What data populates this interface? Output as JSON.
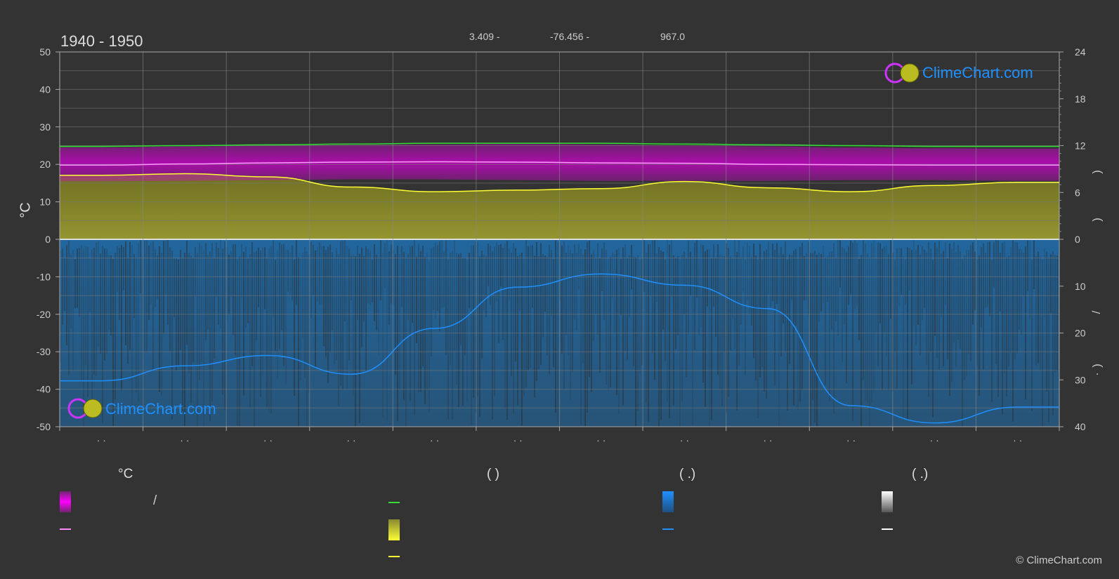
{
  "header": {
    "title": "1940 - 1950",
    "lat": "3.409 -",
    "lon": "-76.456 -",
    "elevation": "967.0"
  },
  "axes": {
    "left_unit": "°C",
    "right_axis_marks": [
      ")",
      ")",
      "/",
      ")",
      "·"
    ]
  },
  "legend": {
    "col1_head": "°C",
    "col2_head": "(            )",
    "col3_head": "(    .)",
    "col4_head": "(    .)",
    "slash": "/"
  },
  "logo_text": "ClimeChart.com",
  "copyright": "© ClimeChart.com",
  "colors": {
    "background": "#333333",
    "temp_band": "#d400d4",
    "temp_mean": "#ff88ff",
    "daylight": "#33dd33",
    "sunshine": "#ffff33",
    "rain": "#1e7fd0",
    "grid": "#888888"
  },
  "chart_data": {
    "type": "area",
    "title": "1940 - 1950",
    "x_month_ticks": [
      "· ·",
      "· ·",
      "· ·",
      "· ·",
      "· ·",
      "· ·",
      "· ·",
      "· ·",
      "· ·",
      "· ·",
      "· ·",
      "· ·"
    ],
    "left_axis": {
      "ticks": [
        50,
        40,
        30,
        20,
        10,
        0,
        -10,
        -20,
        -30,
        -40,
        -50
      ],
      "ylim": [
        -50,
        50
      ]
    },
    "right_axis_top": {
      "ticks": [
        24,
        18,
        12,
        6,
        0
      ],
      "ylim": [
        0,
        24
      ]
    },
    "right_axis_bottom": {
      "ticks": [
        0,
        10,
        20,
        30,
        40
      ],
      "ylim": [
        0,
        40
      ]
    },
    "series": [
      {
        "key": "daylight",
        "axis": "right_top",
        "values": [
          11.9,
          12.0,
          12.1,
          12.2,
          12.3,
          12.3,
          12.3,
          12.2,
          12.1,
          12.0,
          11.9,
          11.9
        ]
      },
      {
        "key": "sunshine",
        "axis": "right_top",
        "values": [
          8.2,
          8.4,
          8.0,
          6.7,
          6.1,
          6.3,
          6.5,
          7.4,
          6.6,
          6.1,
          6.9,
          7.3
        ]
      },
      {
        "key": "temp_max",
        "axis": "left",
        "values": [
          24.5,
          24.8,
          25.0,
          25.2,
          25.3,
          25.5,
          25.3,
          25.0,
          24.8,
          24.5,
          24.3,
          24.2
        ]
      },
      {
        "key": "temp_mean",
        "axis": "left",
        "values": [
          19.8,
          20.1,
          20.4,
          20.6,
          20.7,
          20.6,
          20.4,
          20.3,
          20.0,
          19.9,
          19.8,
          19.8
        ]
      },
      {
        "key": "temp_min",
        "axis": "left",
        "values": [
          15.5,
          15.6,
          15.8,
          16.0,
          16.0,
          15.8,
          15.6,
          15.6,
          15.6,
          15.8,
          15.8,
          15.6
        ]
      },
      {
        "key": "rain",
        "axis": "right_bottom",
        "values": [
          30.2,
          27.0,
          24.8,
          28.8,
          19.0,
          10.2,
          7.4,
          9.8,
          14.8,
          35.5,
          39.2,
          35.8
        ]
      }
    ]
  }
}
